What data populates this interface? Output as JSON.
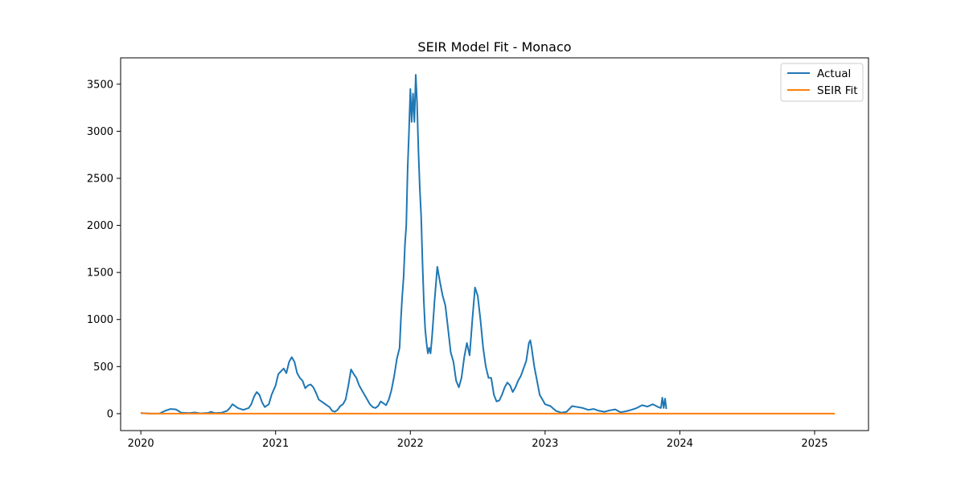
{
  "chart_data": {
    "type": "line",
    "title": "SEIR Model Fit - Monaco",
    "xlabel": "",
    "ylabel": "",
    "xlim": [
      2019.85,
      2025.4
    ],
    "ylim": [
      -180,
      3780
    ],
    "x_ticks": [
      2020,
      2021,
      2022,
      2023,
      2024,
      2025
    ],
    "x_tick_labels": [
      "2020",
      "2021",
      "2022",
      "2023",
      "2024",
      "2025"
    ],
    "y_ticks": [
      0,
      500,
      1000,
      1500,
      2000,
      2500,
      3000,
      3500
    ],
    "y_tick_labels": [
      "0",
      "500",
      "1000",
      "1500",
      "2000",
      "2500",
      "3000",
      "3500"
    ],
    "grid": false,
    "legend_position": "top-right",
    "series": [
      {
        "name": "Actual",
        "color": "#1f77b4",
        "points": [
          [
            2020.0,
            5
          ],
          [
            2020.08,
            0
          ],
          [
            2020.14,
            2
          ],
          [
            2020.18,
            30
          ],
          [
            2020.22,
            50
          ],
          [
            2020.26,
            45
          ],
          [
            2020.3,
            10
          ],
          [
            2020.36,
            5
          ],
          [
            2020.4,
            12
          ],
          [
            2020.44,
            3
          ],
          [
            2020.5,
            8
          ],
          [
            2020.52,
            20
          ],
          [
            2020.55,
            5
          ],
          [
            2020.6,
            10
          ],
          [
            2020.64,
            30
          ],
          [
            2020.66,
            60
          ],
          [
            2020.68,
            100
          ],
          [
            2020.7,
            80
          ],
          [
            2020.72,
            60
          ],
          [
            2020.76,
            40
          ],
          [
            2020.8,
            60
          ],
          [
            2020.82,
            100
          ],
          [
            2020.84,
            180
          ],
          [
            2020.86,
            230
          ],
          [
            2020.88,
            200
          ],
          [
            2020.9,
            120
          ],
          [
            2020.92,
            70
          ],
          [
            2020.95,
            100
          ],
          [
            2020.97,
            200
          ],
          [
            2021.0,
            300
          ],
          [
            2021.02,
            420
          ],
          [
            2021.04,
            450
          ],
          [
            2021.06,
            480
          ],
          [
            2021.08,
            430
          ],
          [
            2021.1,
            550
          ],
          [
            2021.12,
            600
          ],
          [
            2021.14,
            550
          ],
          [
            2021.16,
            430
          ],
          [
            2021.18,
            380
          ],
          [
            2021.2,
            350
          ],
          [
            2021.22,
            270
          ],
          [
            2021.24,
            300
          ],
          [
            2021.26,
            310
          ],
          [
            2021.28,
            280
          ],
          [
            2021.3,
            220
          ],
          [
            2021.32,
            150
          ],
          [
            2021.34,
            130
          ],
          [
            2021.36,
            110
          ],
          [
            2021.38,
            90
          ],
          [
            2021.4,
            70
          ],
          [
            2021.42,
            30
          ],
          [
            2021.44,
            20
          ],
          [
            2021.46,
            40
          ],
          [
            2021.48,
            80
          ],
          [
            2021.5,
            100
          ],
          [
            2021.52,
            150
          ],
          [
            2021.54,
            300
          ],
          [
            2021.56,
            470
          ],
          [
            2021.58,
            420
          ],
          [
            2021.6,
            380
          ],
          [
            2021.62,
            300
          ],
          [
            2021.64,
            250
          ],
          [
            2021.66,
            200
          ],
          [
            2021.68,
            150
          ],
          [
            2021.7,
            100
          ],
          [
            2021.72,
            70
          ],
          [
            2021.74,
            60
          ],
          [
            2021.76,
            80
          ],
          [
            2021.78,
            130
          ],
          [
            2021.8,
            110
          ],
          [
            2021.82,
            90
          ],
          [
            2021.84,
            150
          ],
          [
            2021.86,
            250
          ],
          [
            2021.88,
            400
          ],
          [
            2021.9,
            580
          ],
          [
            2021.92,
            700
          ],
          [
            2021.93,
            1000
          ],
          [
            2021.94,
            1250
          ],
          [
            2021.95,
            1450
          ],
          [
            2021.96,
            1800
          ],
          [
            2021.97,
            2000
          ],
          [
            2021.98,
            2600
          ],
          [
            2021.99,
            3000
          ],
          [
            2022.0,
            3450
          ],
          [
            2022.01,
            3100
          ],
          [
            2022.02,
            3400
          ],
          [
            2022.03,
            3100
          ],
          [
            2022.04,
            3600
          ],
          [
            2022.05,
            3300
          ],
          [
            2022.06,
            2800
          ],
          [
            2022.07,
            2400
          ],
          [
            2022.08,
            2100
          ],
          [
            2022.09,
            1600
          ],
          [
            2022.1,
            1200
          ],
          [
            2022.11,
            900
          ],
          [
            2022.12,
            750
          ],
          [
            2022.13,
            640
          ],
          [
            2022.14,
            700
          ],
          [
            2022.15,
            640
          ],
          [
            2022.16,
            800
          ],
          [
            2022.17,
            1000
          ],
          [
            2022.18,
            1200
          ],
          [
            2022.2,
            1560
          ],
          [
            2022.22,
            1400
          ],
          [
            2022.24,
            1250
          ],
          [
            2022.26,
            1150
          ],
          [
            2022.28,
            900
          ],
          [
            2022.3,
            650
          ],
          [
            2022.32,
            550
          ],
          [
            2022.34,
            350
          ],
          [
            2022.36,
            280
          ],
          [
            2022.38,
            380
          ],
          [
            2022.4,
            600
          ],
          [
            2022.42,
            750
          ],
          [
            2022.44,
            620
          ],
          [
            2022.46,
            1000
          ],
          [
            2022.48,
            1340
          ],
          [
            2022.5,
            1250
          ],
          [
            2022.52,
            1000
          ],
          [
            2022.54,
            700
          ],
          [
            2022.56,
            500
          ],
          [
            2022.58,
            380
          ],
          [
            2022.6,
            380
          ],
          [
            2022.62,
            200
          ],
          [
            2022.64,
            130
          ],
          [
            2022.66,
            140
          ],
          [
            2022.68,
            200
          ],
          [
            2022.7,
            280
          ],
          [
            2022.72,
            330
          ],
          [
            2022.74,
            300
          ],
          [
            2022.76,
            230
          ],
          [
            2022.78,
            280
          ],
          [
            2022.8,
            350
          ],
          [
            2022.82,
            400
          ],
          [
            2022.84,
            480
          ],
          [
            2022.86,
            560
          ],
          [
            2022.88,
            750
          ],
          [
            2022.89,
            780
          ],
          [
            2022.9,
            700
          ],
          [
            2022.92,
            500
          ],
          [
            2022.94,
            350
          ],
          [
            2022.96,
            200
          ],
          [
            2022.98,
            150
          ],
          [
            2023.0,
            100
          ],
          [
            2023.04,
            80
          ],
          [
            2023.08,
            30
          ],
          [
            2023.12,
            10
          ],
          [
            2023.16,
            20
          ],
          [
            2023.2,
            80
          ],
          [
            2023.24,
            70
          ],
          [
            2023.28,
            60
          ],
          [
            2023.32,
            40
          ],
          [
            2023.36,
            50
          ],
          [
            2023.4,
            30
          ],
          [
            2023.44,
            20
          ],
          [
            2023.48,
            35
          ],
          [
            2023.52,
            45
          ],
          [
            2023.56,
            15
          ],
          [
            2023.6,
            25
          ],
          [
            2023.64,
            40
          ],
          [
            2023.68,
            60
          ],
          [
            2023.72,
            90
          ],
          [
            2023.76,
            75
          ],
          [
            2023.8,
            100
          ],
          [
            2023.84,
            70
          ],
          [
            2023.86,
            60
          ],
          [
            2023.87,
            170
          ],
          [
            2023.88,
            60
          ],
          [
            2023.89,
            160
          ],
          [
            2023.9,
            50
          ]
        ]
      },
      {
        "name": "SEIR Fit",
        "color": "#ff7f0e",
        "points": [
          [
            2020.0,
            10
          ],
          [
            2020.03,
            2
          ],
          [
            2020.08,
            0
          ],
          [
            2025.15,
            0
          ]
        ]
      }
    ]
  }
}
